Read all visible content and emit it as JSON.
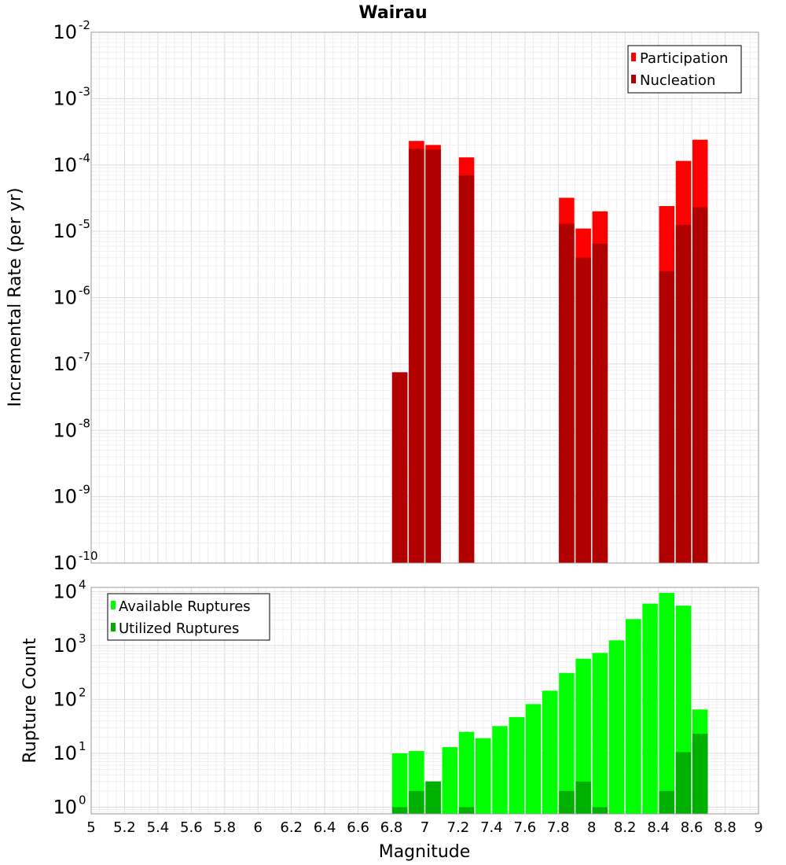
{
  "chart_data": [
    {
      "type": "bar",
      "title": "Wairau",
      "xlabel": "",
      "ylabel": "Incremental Rate (per yr)",
      "yscale": "log",
      "xlim": [
        5,
        9
      ],
      "ylim": [
        1e-10,
        0.01
      ],
      "ytick_base": "10",
      "ytick_exponents": [
        "-10",
        "-9",
        "-8",
        "-7",
        "-6",
        "-5",
        "-4",
        "-3",
        "-2"
      ],
      "grid": true,
      "legend_position": "top-right",
      "categories": [
        6.85,
        6.95,
        7.05,
        7.25,
        7.85,
        7.95,
        8.05,
        8.45,
        8.55,
        8.65
      ],
      "series": [
        {
          "name": "Participation",
          "color": "#ff0000",
          "values": [
            7.5e-08,
            0.00023,
            0.0002,
            0.00013,
            3.2e-05,
            1.1e-05,
            2e-05,
            2.4e-05,
            0.000115,
            0.00024
          ]
        },
        {
          "name": "Nucleation",
          "color": "#b00000",
          "values": [
            7.5e-08,
            0.000175,
            0.00017,
            7e-05,
            1.3e-05,
            4e-06,
            6.5e-06,
            2.5e-06,
            1.25e-05,
            2.3e-05
          ]
        }
      ]
    },
    {
      "type": "bar",
      "title": "",
      "xlabel": "Magnitude",
      "ylabel": "Rupture Count",
      "yscale": "log",
      "xlim": [
        5,
        9
      ],
      "ylim": [
        0.75,
        12000
      ],
      "ytick_base": "10",
      "ytick_exponents": [
        "0",
        "1",
        "2",
        "3",
        "4"
      ],
      "xticks": [
        "5",
        "5.2",
        "5.4",
        "5.6",
        "5.8",
        "6",
        "6.2",
        "6.4",
        "6.6",
        "6.8",
        "7",
        "7.2",
        "7.4",
        "7.6",
        "7.8",
        "8",
        "8.2",
        "8.4",
        "8.6",
        "8.8",
        "9"
      ],
      "grid": true,
      "legend_position": "top-left",
      "categories": [
        6.85,
        6.95,
        7.05,
        7.15,
        7.25,
        7.35,
        7.45,
        7.55,
        7.65,
        7.75,
        7.85,
        7.95,
        8.05,
        8.15,
        8.25,
        8.35,
        8.45,
        8.55,
        8.65
      ],
      "series": [
        {
          "name": "Available Ruptures",
          "color": "#00ff00",
          "values": [
            10,
            11,
            3,
            13,
            25,
            19,
            32,
            47,
            82,
            145,
            310,
            570,
            730,
            1250,
            3100,
            6000,
            9500,
            5500,
            65
          ]
        },
        {
          "name": "Utilized Ruptures",
          "color": "#00b000",
          "values": [
            1,
            2,
            3,
            0,
            1,
            0,
            0,
            0,
            0,
            0,
            2,
            3,
            1,
            0,
            0,
            0,
            2,
            10.5,
            23
          ]
        }
      ]
    }
  ]
}
